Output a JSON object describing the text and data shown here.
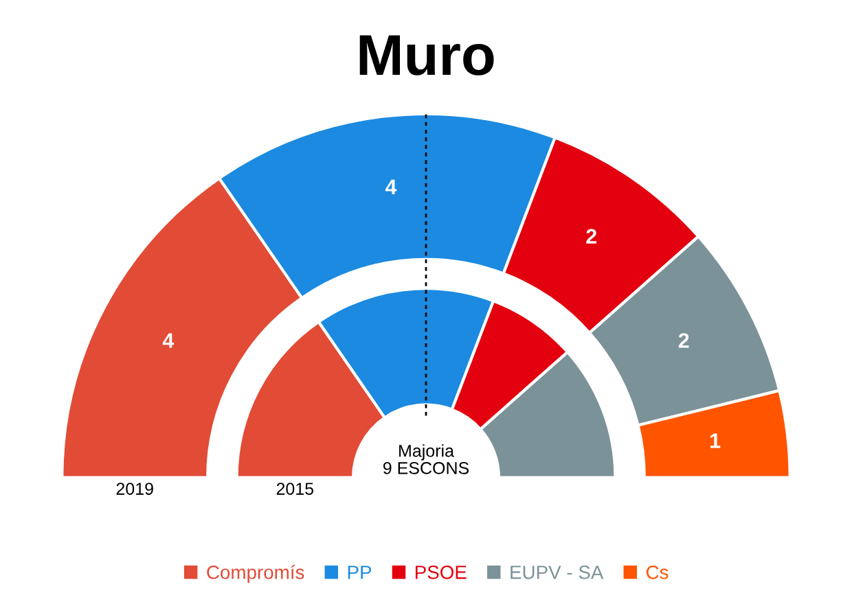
{
  "chart_data": {
    "type": "donut",
    "title": "Muro",
    "categories": [
      "Compromís",
      "PP",
      "PSOE",
      "EUPV - SA",
      "Cs"
    ],
    "colors": [
      "#e24b36",
      "#1c8ae0",
      "#e3000f",
      "#7b9298",
      "#ff5500"
    ],
    "legend": "bottom",
    "annotations": [
      "Majoria\n9 ESCONS"
    ],
    "series": [
      {
        "name": "2019",
        "values": [
          4,
          4,
          2,
          2,
          1
        ],
        "value_labels": [
          "4",
          "4",
          "2",
          "2",
          "1"
        ]
      },
      {
        "name": "2015",
        "values": [
          30.8,
          30.8,
          15.3,
          23.1,
          null
        ]
      }
    ]
  }
}
